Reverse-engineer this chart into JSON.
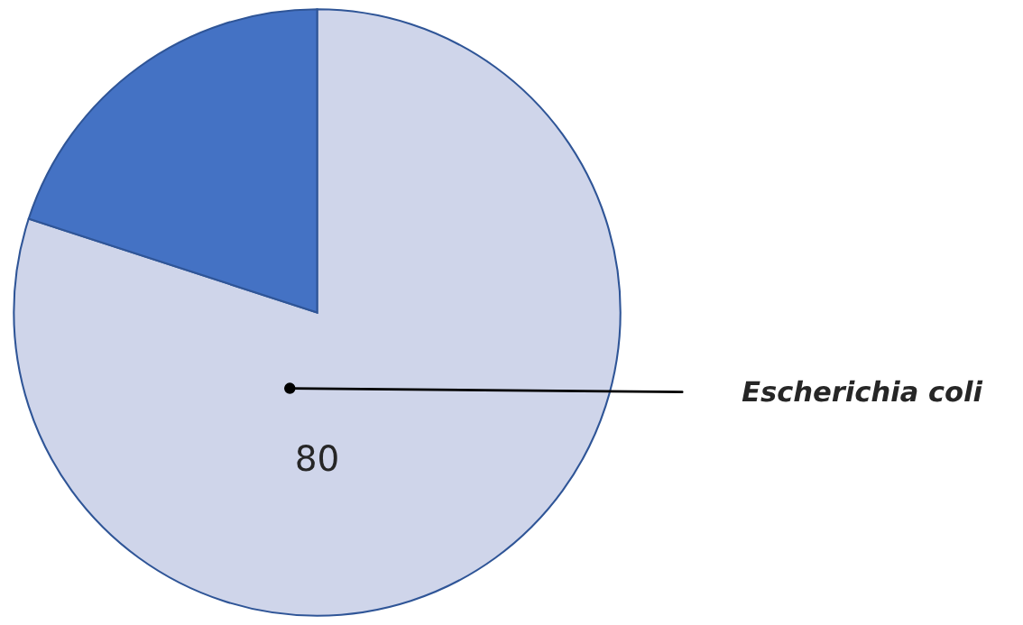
{
  "chart_data": {
    "type": "pie",
    "categories": [
      "Escherichia coli",
      null
    ],
    "values": [
      80,
      20
    ],
    "colors": [
      "#cfd5ea",
      "#4472c4"
    ],
    "value_labels": [
      "80",
      null
    ]
  }
}
